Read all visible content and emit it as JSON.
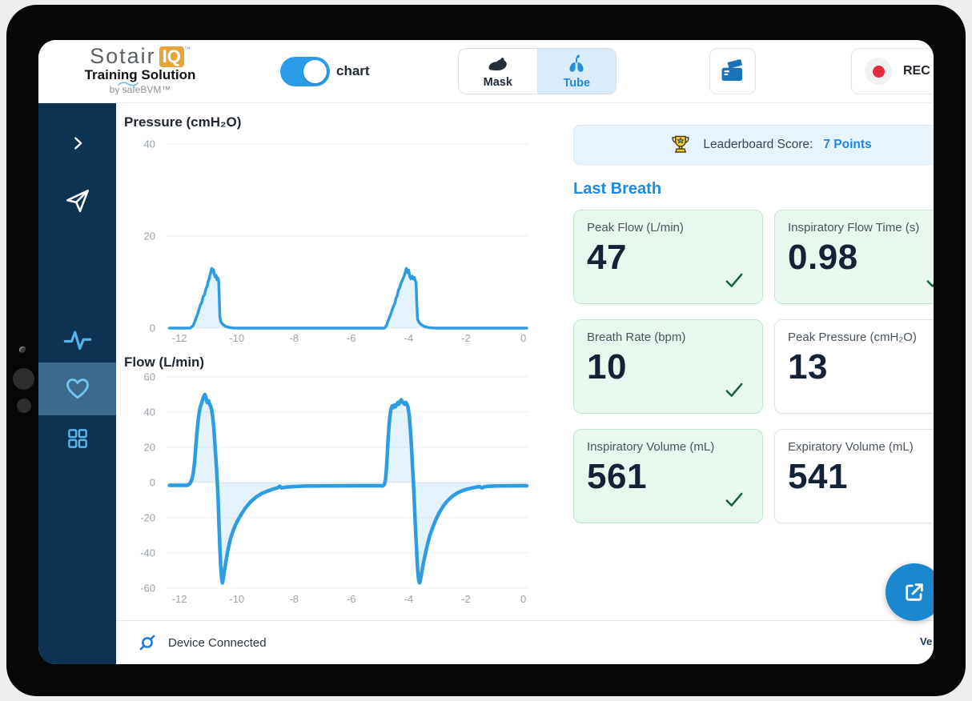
{
  "colors": {
    "accent_blue": "#2b9ce8",
    "link_blue": "#1e88e5",
    "chart_line": "#2e9ce1",
    "chart_fill": "#dcedfa",
    "sidebar_bg": "#0e3251",
    "sidebar_selected": "#3b6a8c",
    "sidebar_icon": "#58b2ea",
    "pass_card_bg": "#e9f8ee",
    "pass_card_border": "#bce6ca",
    "check_green": "#17603a",
    "score_bar_bg": "#e7f3fd",
    "rec_red": "#e22b3f",
    "logo_orange": "#e8a33b",
    "value_navy": "#142238"
  },
  "header": {
    "logo": {
      "brand": "Sotair",
      "badge": "IQ",
      "tm": "™",
      "subtitle": "Training Solution",
      "byline": "by safeBVM™"
    },
    "view_toggle": {
      "label": "chart",
      "state": "on"
    },
    "mode_tabs": [
      {
        "label": "Mask",
        "selected": false
      },
      {
        "label": "Tube",
        "selected": true
      }
    ],
    "rec_button": {
      "label": "REC"
    }
  },
  "sidebar": {
    "items": [
      {
        "icon": "chevron-right-icon",
        "selected": false
      },
      {
        "icon": "send-icon",
        "selected": false
      },
      {
        "icon": "waveform-icon",
        "selected": false
      },
      {
        "icon": "heart-icon",
        "selected": true
      },
      {
        "icon": "grid-icon",
        "selected": false
      }
    ]
  },
  "leaderboard": {
    "label": "Leaderboard Score:",
    "score": "7 Points"
  },
  "section_title": "Last Breath",
  "cards": [
    {
      "label": "Peak Flow (L/min)",
      "value": "47",
      "passed": true
    },
    {
      "label": "Inspiratory Flow Time (s)",
      "value": "0.98",
      "passed": true
    },
    {
      "label": "Breath Rate (bpm)",
      "value": "10",
      "passed": true
    },
    {
      "label": "Peak Pressure (cmH₂O)",
      "value": "13",
      "passed": false
    },
    {
      "label": "Inspiratory Volume (mL)",
      "value": "561",
      "passed": true
    },
    {
      "label": "Expiratory Volume (mL)",
      "value": "541",
      "passed": false
    }
  ],
  "footer": {
    "status": "Device Connected",
    "version_label": "Ve"
  },
  "chart_data": [
    {
      "type": "area",
      "title": "Pressure (cmH₂O)",
      "ylabel": "cmH2O",
      "xlim": [
        -12.45,
        0.18
      ],
      "ylim": [
        0,
        40
      ],
      "yticks": [
        0,
        20,
        40
      ],
      "xticks": [
        -12,
        -10,
        -8,
        -6,
        -4,
        -2,
        0
      ],
      "grid": true,
      "points": [
        [
          -12.35,
          0
        ],
        [
          -11.62,
          0
        ],
        [
          -11.52,
          0.6
        ],
        [
          -11.44,
          1.8
        ],
        [
          -11.37,
          3
        ],
        [
          -11.31,
          4.2
        ],
        [
          -11.27,
          5
        ],
        [
          -11.22,
          5.6
        ],
        [
          -11.17,
          6.9
        ],
        [
          -11.12,
          7.3
        ],
        [
          -11.07,
          8.7
        ],
        [
          -11.03,
          9.1
        ],
        [
          -10.99,
          10.3
        ],
        [
          -10.96,
          10.7
        ],
        [
          -10.93,
          11.7
        ],
        [
          -10.9,
          12.3
        ],
        [
          -10.87,
          13
        ],
        [
          -10.84,
          12.2
        ],
        [
          -10.81,
          12.7
        ],
        [
          -10.78,
          11.6
        ],
        [
          -10.75,
          11.1
        ],
        [
          -10.72,
          11.5
        ],
        [
          -10.69,
          10.5
        ],
        [
          -10.66,
          10.9
        ],
        [
          -10.63,
          10.3
        ],
        [
          -10.61,
          7
        ],
        [
          -10.59,
          2.4
        ],
        [
          -10.55,
          1.3
        ],
        [
          -10.48,
          0.8
        ],
        [
          -10.4,
          0.4
        ],
        [
          -10.28,
          0.15
        ],
        [
          -10.1,
          0
        ],
        [
          -4.84,
          0
        ],
        [
          -4.78,
          0.5
        ],
        [
          -4.72,
          1.5
        ],
        [
          -4.66,
          2.5
        ],
        [
          -4.61,
          3.3
        ],
        [
          -4.56,
          4.3
        ],
        [
          -4.52,
          4.9
        ],
        [
          -4.48,
          5.4
        ],
        [
          -4.44,
          6.6
        ],
        [
          -4.4,
          7
        ],
        [
          -4.36,
          8.2
        ],
        [
          -4.32,
          8.7
        ],
        [
          -4.28,
          9.5
        ],
        [
          -4.24,
          10.1
        ],
        [
          -4.2,
          10.7
        ],
        [
          -4.16,
          11.3
        ],
        [
          -4.12,
          12.1
        ],
        [
          -4.08,
          13
        ],
        [
          -4.04,
          12.1
        ],
        [
          -4.0,
          12.6
        ],
        [
          -3.96,
          11.2
        ],
        [
          -3.92,
          10.7
        ],
        [
          -3.88,
          11.3
        ],
        [
          -3.84,
          10.7
        ],
        [
          -3.8,
          11
        ],
        [
          -3.77,
          10.3
        ],
        [
          -3.74,
          9.9
        ],
        [
          -3.72,
          6
        ],
        [
          -3.69,
          1.9
        ],
        [
          -3.63,
          1.2
        ],
        [
          -3.55,
          0.7
        ],
        [
          -3.45,
          0.35
        ],
        [
          -3.3,
          0.1
        ],
        [
          -3.1,
          0
        ],
        [
          0.12,
          0
        ]
      ]
    },
    {
      "type": "area",
      "title": "Flow (L/min)",
      "ylabel": "L/min",
      "xlim": [
        -12.45,
        0.18
      ],
      "ylim": [
        -60,
        60
      ],
      "yticks": [
        -60,
        -40,
        -20,
        0,
        20,
        40,
        60
      ],
      "xticks": [
        -12,
        -10,
        -8,
        -6,
        -4,
        -2,
        0
      ],
      "grid": true,
      "points": [
        [
          -12.35,
          -1.6
        ],
        [
          -11.72,
          -1.6
        ],
        [
          -11.63,
          -0.6
        ],
        [
          -11.56,
          2
        ],
        [
          -11.51,
          6
        ],
        [
          -11.47,
          12
        ],
        [
          -11.43,
          20
        ],
        [
          -11.39,
          28
        ],
        [
          -11.35,
          35
        ],
        [
          -11.31,
          40
        ],
        [
          -11.27,
          43
        ],
        [
          -11.23,
          45
        ],
        [
          -11.19,
          47
        ],
        [
          -11.15,
          49
        ],
        [
          -11.11,
          50
        ],
        [
          -11.07,
          48
        ],
        [
          -11.03,
          45.5
        ],
        [
          -10.99,
          46.5
        ],
        [
          -10.95,
          44.5
        ],
        [
          -10.91,
          43.5
        ],
        [
          -10.87,
          41
        ],
        [
          -10.83,
          36
        ],
        [
          -10.79,
          29
        ],
        [
          -10.75,
          19
        ],
        [
          -10.71,
          9
        ],
        [
          -10.68,
          1
        ],
        [
          -10.65,
          -9
        ],
        [
          -10.62,
          -24
        ],
        [
          -10.59,
          -37
        ],
        [
          -10.56,
          -47
        ],
        [
          -10.53,
          -54
        ],
        [
          -10.5,
          -57
        ],
        [
          -10.47,
          -54.5
        ],
        [
          -10.43,
          -50
        ],
        [
          -10.38,
          -45
        ],
        [
          -10.31,
          -38.5
        ],
        [
          -10.22,
          -32
        ],
        [
          -10.12,
          -27
        ],
        [
          -10.0,
          -22.5
        ],
        [
          -9.86,
          -18.5
        ],
        [
          -9.7,
          -14.5
        ],
        [
          -9.52,
          -11
        ],
        [
          -9.32,
          -8.2
        ],
        [
          -9.12,
          -6.2
        ],
        [
          -8.92,
          -4.8
        ],
        [
          -8.72,
          -3.7
        ],
        [
          -8.58,
          -3
        ],
        [
          -8.5,
          -2.2
        ],
        [
          -8.44,
          -3.1
        ],
        [
          -8.3,
          -2.7
        ],
        [
          -8.05,
          -2.3
        ],
        [
          -7.6,
          -2
        ],
        [
          -7.0,
          -1.9
        ],
        [
          -6.3,
          -1.85
        ],
        [
          -5.6,
          -1.8
        ],
        [
          -5.0,
          -1.8
        ],
        [
          -4.9,
          -1.9
        ],
        [
          -4.85,
          -1.2
        ],
        [
          -4.81,
          1.5
        ],
        [
          -4.78,
          7
        ],
        [
          -4.75,
          15
        ],
        [
          -4.72,
          24
        ],
        [
          -4.69,
          31
        ],
        [
          -4.66,
          37
        ],
        [
          -4.62,
          41.5
        ],
        [
          -4.58,
          43.5
        ],
        [
          -4.54,
          42.5
        ],
        [
          -4.5,
          44
        ],
        [
          -4.46,
          43
        ],
        [
          -4.42,
          44
        ],
        [
          -4.38,
          45.5
        ],
        [
          -4.34,
          44.5
        ],
        [
          -4.3,
          46
        ],
        [
          -4.26,
          47
        ],
        [
          -4.22,
          46
        ],
        [
          -4.18,
          45
        ],
        [
          -4.14,
          44.5
        ],
        [
          -4.1,
          45.5
        ],
        [
          -4.06,
          44.5
        ],
        [
          -4.02,
          42.5
        ],
        [
          -3.98,
          38
        ],
        [
          -3.94,
          30
        ],
        [
          -3.9,
          20
        ],
        [
          -3.87,
          10
        ],
        [
          -3.84,
          2
        ],
        [
          -3.81,
          -8
        ],
        [
          -3.78,
          -20
        ],
        [
          -3.74,
          -33
        ],
        [
          -3.71,
          -43
        ],
        [
          -3.68,
          -51
        ],
        [
          -3.65,
          -55.5
        ],
        [
          -3.62,
          -57
        ],
        [
          -3.58,
          -54.5
        ],
        [
          -3.54,
          -50.5
        ],
        [
          -3.49,
          -46
        ],
        [
          -3.42,
          -40.5
        ],
        [
          -3.34,
          -35
        ],
        [
          -3.26,
          -30
        ],
        [
          -3.16,
          -25.5
        ],
        [
          -3.05,
          -21
        ],
        [
          -2.93,
          -17
        ],
        [
          -2.81,
          -13.8
        ],
        [
          -2.69,
          -11.2
        ],
        [
          -2.57,
          -9.2
        ],
        [
          -2.45,
          -7.5
        ],
        [
          -2.33,
          -6.2
        ],
        [
          -2.21,
          -5.2
        ],
        [
          -2.09,
          -4.4
        ],
        [
          -1.97,
          -3.8
        ],
        [
          -1.85,
          -3.3
        ],
        [
          -1.73,
          -2.9
        ],
        [
          -1.61,
          -2.5
        ],
        [
          -1.52,
          -2.3
        ],
        [
          -1.45,
          -3.1
        ],
        [
          -1.37,
          -2.5
        ],
        [
          -1.25,
          -2.2
        ],
        [
          -1.1,
          -2.05
        ],
        [
          -0.9,
          -1.95
        ],
        [
          -0.65,
          -1.9
        ],
        [
          -0.4,
          -1.85
        ],
        [
          0.12,
          -1.8
        ]
      ]
    }
  ]
}
